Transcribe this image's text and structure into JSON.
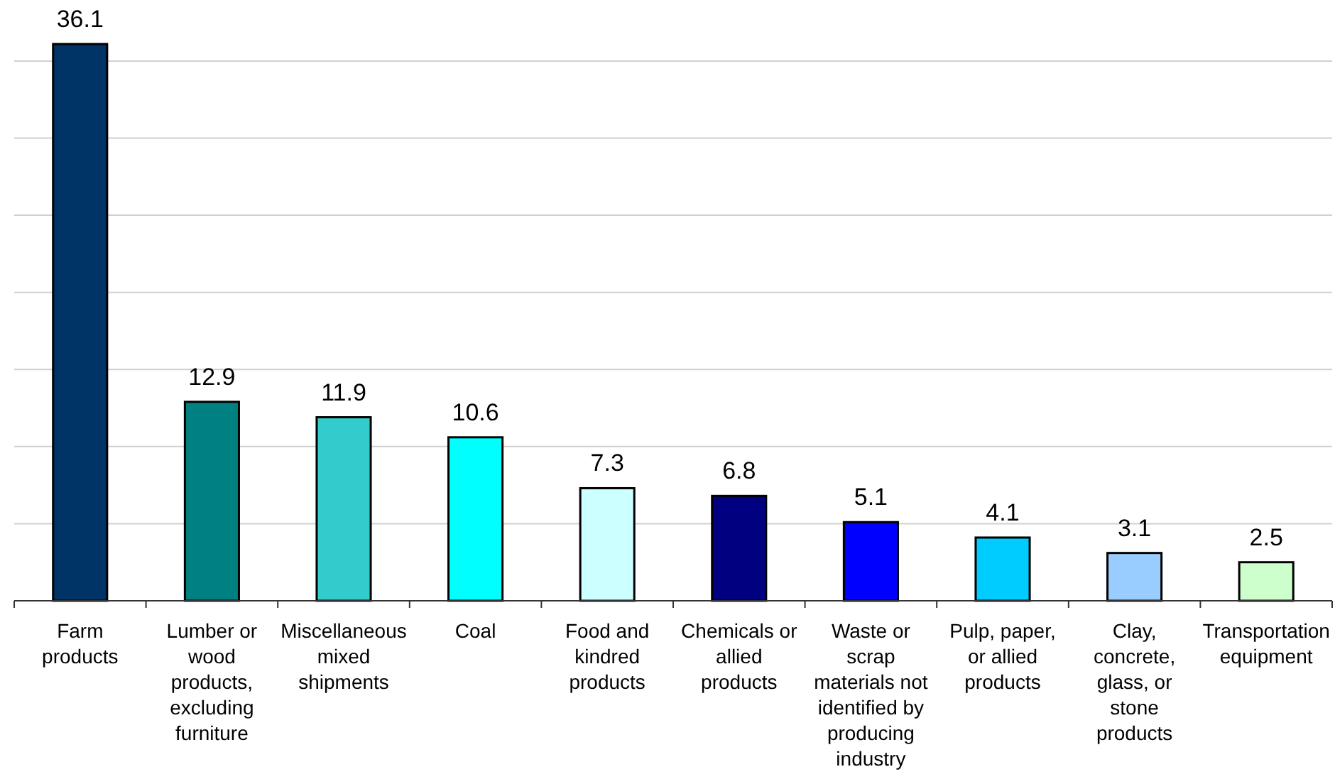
{
  "chart_data": {
    "type": "bar",
    "categories": [
      "Farm products",
      "Lumber or wood products, excluding furniture",
      "Miscellaneous mixed shipments",
      "Coal",
      "Food and kindred products",
      "Chemicals or allied products",
      "Waste or scrap materials not identified by producing industry",
      "Pulp, paper, or allied products",
      "Clay, concrete, glass, or stone products",
      "Transportation equipment"
    ],
    "values": [
      36.1,
      12.9,
      11.9,
      10.6,
      7.3,
      6.8,
      5.1,
      4.1,
      3.1,
      2.5
    ],
    "colors": [
      "#003366",
      "#008080",
      "#33cccc",
      "#00ffff",
      "#ccffff",
      "#000080",
      "#0000ff",
      "#00ccff",
      "#99ccff",
      "#ccffcc"
    ],
    "yticks": [
      {
        "value": 5,
        "label": null
      },
      {
        "value": 10,
        "label": null
      },
      {
        "value": 15,
        "label": null
      },
      {
        "value": 20,
        "label": null
      },
      {
        "value": 25,
        "label": null
      },
      {
        "value": 30,
        "label": null
      },
      {
        "value": 35,
        "label": null
      }
    ],
    "grid": "y",
    "tick_labels": "x",
    "data_labels": true
  }
}
